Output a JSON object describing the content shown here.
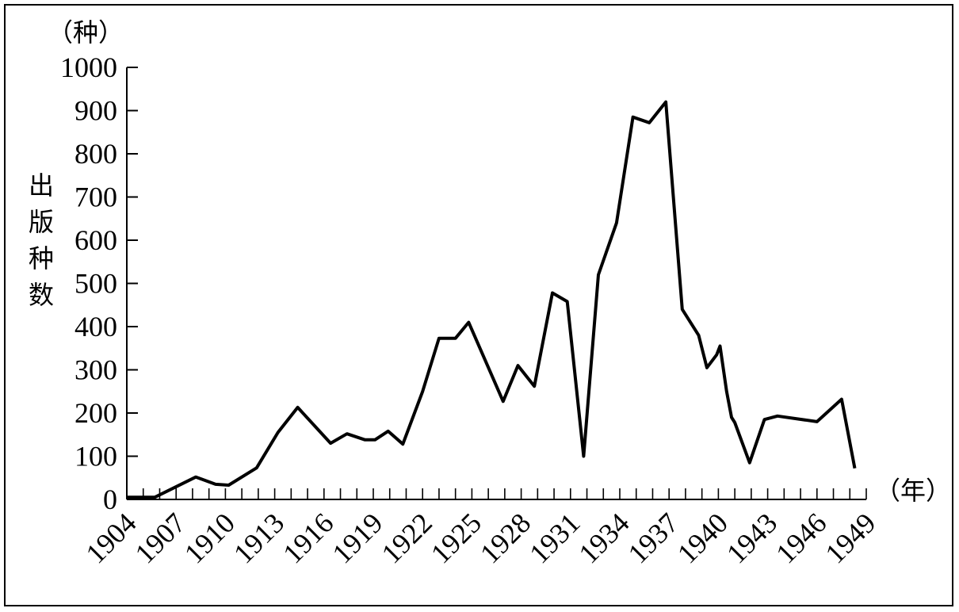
{
  "chart_data": {
    "type": "line",
    "title": "",
    "ylabel": "出版种数",
    "y_unit": "（种）",
    "x_unit": "（年）",
    "ylim": [
      0,
      1000
    ],
    "yticks": [
      0,
      100,
      200,
      300,
      400,
      500,
      600,
      700,
      800,
      900,
      1000
    ],
    "xlim": [
      1904,
      1949
    ],
    "xticks_labeled": [
      1904,
      1907,
      1910,
      1913,
      1916,
      1919,
      1922,
      1925,
      1928,
      1931,
      1934,
      1937,
      1940,
      1943,
      1946,
      1949
    ],
    "grid": false,
    "series": [
      {
        "color": "#000000",
        "x": [
          1904,
          1905,
          1905.7,
          1908.2,
          1909.4,
          1910.2,
          1911.9,
          1913.2,
          1914.4,
          1916.4,
          1917.4,
          1918.5,
          1919.1,
          1919.9,
          1920.8,
          1922.0,
          1923.0,
          1924.0,
          1924.8,
          1926.9,
          1927.8,
          1928.8,
          1929.9,
          1930.8,
          1931.8,
          1932.7,
          1933.8,
          1934.8,
          1935.8,
          1936.8,
          1937.8,
          1938.8,
          1939.3,
          1939.9,
          1940.1,
          1940.5,
          1940.8,
          1941.0,
          1941.9,
          1942.8,
          1943.6,
          1946.0,
          1947.5,
          1948.3
        ],
        "y": [
          5,
          5,
          5,
          52,
          35,
          33,
          73,
          155,
          213,
          130,
          152,
          138,
          138,
          158,
          128,
          250,
          373,
          373,
          410,
          227,
          310,
          262,
          478,
          458,
          100,
          520,
          640,
          885,
          872,
          920,
          440,
          380,
          305,
          335,
          355,
          250,
          190,
          178,
          85,
          185,
          193,
          180,
          232,
          72
        ]
      }
    ]
  }
}
